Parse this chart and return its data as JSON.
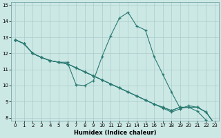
{
  "xlabel": "Humidex (Indice chaleur)",
  "background_color": "#cce8e5",
  "grid_color": "#aacccc",
  "line_color": "#2a7a72",
  "xlim": [
    -0.5,
    23.5
  ],
  "ylim": [
    7.8,
    15.2
  ],
  "xticks": [
    0,
    1,
    2,
    3,
    4,
    5,
    6,
    7,
    8,
    9,
    10,
    11,
    12,
    13,
    14,
    15,
    16,
    17,
    18,
    19,
    20,
    21,
    22,
    23
  ],
  "yticks": [
    8,
    9,
    10,
    11,
    12,
    13,
    14,
    15
  ],
  "line0_x": [
    0,
    1,
    2,
    3,
    4,
    5,
    6,
    7,
    8,
    9,
    10,
    11,
    12,
    13,
    14,
    15,
    16,
    17,
    18,
    19,
    20,
    21,
    22
  ],
  "line0_y": [
    12.85,
    12.6,
    12.0,
    11.75,
    11.55,
    11.45,
    11.45,
    10.05,
    10.0,
    10.3,
    11.8,
    13.1,
    14.2,
    14.55,
    13.7,
    13.45,
    11.8,
    10.7,
    9.6,
    8.6,
    8.65,
    8.4,
    7.85
  ],
  "line1_x": [
    0,
    1,
    2,
    3,
    4,
    5,
    6,
    7,
    8,
    9,
    10,
    11,
    12,
    13,
    14,
    15,
    16,
    17,
    18,
    19,
    20,
    21,
    22,
    23
  ],
  "line1_y": [
    12.85,
    12.6,
    12.0,
    11.75,
    11.55,
    11.45,
    11.35,
    11.1,
    10.85,
    10.6,
    10.35,
    10.1,
    9.85,
    9.6,
    9.35,
    9.1,
    8.85,
    8.6,
    8.35,
    8.55,
    8.75,
    8.65,
    8.35,
    7.6
  ],
  "line2_x": [
    0,
    1,
    2,
    3,
    4,
    5,
    6,
    7,
    8,
    9,
    10,
    11,
    12,
    13,
    14,
    15,
    16,
    17,
    18,
    19,
    20,
    21,
    22,
    23
  ],
  "line2_y": [
    12.85,
    12.6,
    12.0,
    11.75,
    11.55,
    11.45,
    11.35,
    11.1,
    10.85,
    10.6,
    10.35,
    10.1,
    9.85,
    9.6,
    9.35,
    9.1,
    8.85,
    8.65,
    8.45,
    8.65,
    8.65,
    8.65,
    8.35,
    7.6
  ],
  "line3_x": [
    0,
    1,
    2,
    3,
    4,
    5,
    6,
    7,
    8,
    9,
    10,
    11,
    12,
    13,
    14,
    15,
    16,
    17,
    18,
    19,
    20,
    21,
    22,
    23
  ],
  "line3_y": [
    12.85,
    12.6,
    12.0,
    11.75,
    11.55,
    11.45,
    11.35,
    11.1,
    10.85,
    10.6,
    10.35,
    10.1,
    9.85,
    9.6,
    9.35,
    9.1,
    8.85,
    8.65,
    8.45,
    8.65,
    8.65,
    8.65,
    8.35,
    7.6
  ]
}
